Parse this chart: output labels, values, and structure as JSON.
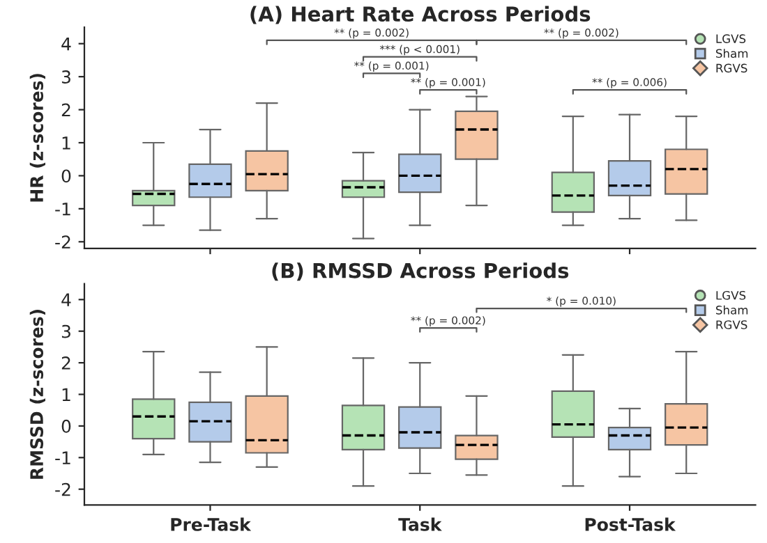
{
  "chart_data": [
    {
      "type": "box",
      "title": "(A) Heart Rate Across Periods",
      "ylabel": "HR (z-scores)",
      "categories": [
        null,
        null,
        null
      ],
      "ylim": [
        -2.2,
        4.5
      ],
      "yticks": [
        -2,
        -1,
        0,
        1,
        2,
        3,
        4
      ],
      "tick_labels": "y",
      "grid": false,
      "legend": "top right",
      "series": [
        {
          "name": "LGVS",
          "color": "#b5e3b5",
          "marker": "circle",
          "boxes": [
            {
              "low": -1.5,
              "q1": -0.9,
              "median": -0.55,
              "q3": -0.45,
              "high": 1.0
            },
            {
              "low": -1.9,
              "q1": -0.65,
              "median": -0.35,
              "q3": -0.15,
              "high": 0.7
            },
            {
              "low": -1.5,
              "q1": -1.1,
              "median": -0.6,
              "q3": 0.1,
              "high": 1.8
            }
          ]
        },
        {
          "name": "Sham",
          "color": "#b4cbea",
          "marker": "square",
          "boxes": [
            {
              "low": -1.65,
              "q1": -0.65,
              "median": -0.25,
              "q3": 0.35,
              "high": 1.4
            },
            {
              "low": -1.5,
              "q1": -0.5,
              "median": 0.0,
              "q3": 0.65,
              "high": 2.0
            },
            {
              "low": -1.3,
              "q1": -0.6,
              "median": -0.3,
              "q3": 0.45,
              "high": 1.85
            }
          ]
        },
        {
          "name": "RGVS",
          "color": "#f6c5a3",
          "marker": "diamond",
          "boxes": [
            {
              "low": -1.3,
              "q1": -0.45,
              "median": 0.05,
              "q3": 0.75,
              "high": 2.2
            },
            {
              "low": -0.9,
              "q1": 0.5,
              "median": 1.4,
              "q3": 1.95,
              "high": 2.4
            },
            {
              "low": -1.35,
              "q1": -0.55,
              "median": 0.2,
              "q3": 0.8,
              "high": 1.8
            }
          ]
        }
      ],
      "annotations": [
        "** (p = 0.002)",
        "*** (p < 0.001)",
        "** (p = 0.001)",
        "** (p = 0.001)",
        "** (p = 0.002)",
        "** (p = 0.006)"
      ]
    },
    {
      "type": "box",
      "title": "(B) RMSSD Across Periods",
      "ylabel": "RMSSD (z-scores)",
      "categories": [
        "Pre-Task",
        "Task",
        "Post-Task"
      ],
      "ylim": [
        -2.5,
        4.5
      ],
      "yticks": [
        -2,
        -1,
        0,
        1,
        2,
        3,
        4
      ],
      "grid": false,
      "legend": "top right",
      "series": [
        {
          "name": "LGVS",
          "color": "#b5e3b5",
          "marker": "circle",
          "boxes": [
            {
              "low": -0.9,
              "q1": -0.4,
              "median": 0.3,
              "q3": 0.85,
              "high": 2.35
            },
            {
              "low": -1.9,
              "q1": -0.75,
              "median": -0.3,
              "q3": 0.65,
              "high": 2.15
            },
            {
              "low": -1.9,
              "q1": -0.35,
              "median": 0.05,
              "q3": 1.1,
              "high": 2.25
            }
          ]
        },
        {
          "name": "Sham",
          "color": "#b4cbea",
          "marker": "square",
          "boxes": [
            {
              "low": -1.15,
              "q1": -0.5,
              "median": 0.15,
              "q3": 0.75,
              "high": 1.7
            },
            {
              "low": -1.5,
              "q1": -0.7,
              "median": -0.2,
              "q3": 0.6,
              "high": 2.0
            },
            {
              "low": -1.6,
              "q1": -0.75,
              "median": -0.3,
              "q3": -0.05,
              "high": 0.55
            }
          ]
        },
        {
          "name": "RGVS",
          "color": "#f6c5a3",
          "marker": "diamond",
          "boxes": [
            {
              "low": -1.3,
              "q1": -0.85,
              "median": -0.45,
              "q3": 0.95,
              "high": 2.5
            },
            {
              "low": -1.55,
              "q1": -1.05,
              "median": -0.6,
              "q3": -0.3,
              "high": 0.95
            },
            {
              "low": -1.5,
              "q1": -0.6,
              "median": -0.05,
              "q3": 0.7,
              "high": 2.35
            }
          ]
        }
      ],
      "annotations": [
        "** (p = 0.002)",
        "* (p = 0.010)"
      ]
    }
  ]
}
